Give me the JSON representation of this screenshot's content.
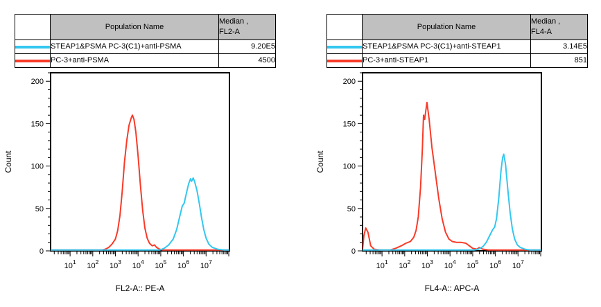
{
  "colors": {
    "red": "#F93A28",
    "cyan": "#33C7F0",
    "header_bg": "#C0C0C0",
    "axis": "#000000"
  },
  "panels": [
    {
      "table": {
        "population_header": "Population Name",
        "median_header_line1": "Median ,",
        "median_header_line2": "FL2-A",
        "rows": [
          {
            "color_key": "cyan",
            "population": "STEAP1&PSMA PC-3(C1)+anti-PSMA",
            "median": "9.20E5"
          },
          {
            "color_key": "red",
            "population": "PC-3+anti-PSMA",
            "median": "4500"
          }
        ]
      }
    },
    {
      "table": {
        "population_header": "Population Name",
        "median_header_line1": "Median ,",
        "median_header_line2": "FL4-A",
        "rows": [
          {
            "color_key": "cyan",
            "population": "STEAP1&PSMA PC-3(C1)+anti-STEAP1",
            "median": "3.14E5"
          },
          {
            "color_key": "red",
            "population": "PC-3+anti-STEAP1",
            "median": "851"
          }
        ]
      }
    }
  ],
  "chart_data": [
    {
      "type": "line",
      "title": "",
      "xlabel": "FL2-A:: PE-A",
      "ylabel": "Count",
      "x_scale": "log10",
      "x_range_decades": [
        0.14,
        8.03
      ],
      "x_major_tick_decades_labeled": [
        1,
        2,
        3,
        4,
        5,
        6,
        7
      ],
      "x_tick_label_format": "10^n",
      "ylim": [
        0,
        210
      ],
      "y_major_ticks": [
        0,
        50,
        100,
        150,
        200
      ],
      "y_minor_step": 10,
      "grid": false,
      "legend": "table above chart",
      "series": [
        {
          "name": "PC-3+anti-PSMA",
          "color_key": "red",
          "median_label": "4500",
          "points": [
            [
              0.14,
              1
            ],
            [
              2.4,
              1
            ],
            [
              2.55,
              2
            ],
            [
              2.7,
              4
            ],
            [
              2.85,
              8
            ],
            [
              3.0,
              14
            ],
            [
              3.1,
              24
            ],
            [
              3.2,
              42
            ],
            [
              3.3,
              70
            ],
            [
              3.4,
              105
            ],
            [
              3.5,
              130
            ],
            [
              3.6,
              148
            ],
            [
              3.7,
              157
            ],
            [
              3.75,
              160
            ],
            [
              3.82,
              155
            ],
            [
              3.9,
              140
            ],
            [
              4.0,
              112
            ],
            [
              4.1,
              78
            ],
            [
              4.2,
              48
            ],
            [
              4.3,
              27
            ],
            [
              4.4,
              15
            ],
            [
              4.5,
              9
            ],
            [
              4.62,
              6
            ],
            [
              4.72,
              7
            ],
            [
              4.82,
              4
            ],
            [
              4.95,
              2
            ],
            [
              5.1,
              1
            ],
            [
              8.03,
              1
            ]
          ]
        },
        {
          "name": "STEAP1&PSMA PC-3(C1)+anti-PSMA",
          "color_key": "cyan",
          "median_label": "9.20E5",
          "points": [
            [
              0.14,
              1
            ],
            [
              4.95,
              1
            ],
            [
              5.15,
              3
            ],
            [
              5.35,
              7
            ],
            [
              5.55,
              14
            ],
            [
              5.7,
              25
            ],
            [
              5.85,
              42
            ],
            [
              5.95,
              53
            ],
            [
              6.03,
              56
            ],
            [
              6.13,
              68
            ],
            [
              6.23,
              79
            ],
            [
              6.31,
              85
            ],
            [
              6.36,
              82
            ],
            [
              6.43,
              86
            ],
            [
              6.5,
              81
            ],
            [
              6.6,
              71
            ],
            [
              6.7,
              56
            ],
            [
              6.8,
              39
            ],
            [
              6.9,
              25
            ],
            [
              7.0,
              15
            ],
            [
              7.12,
              8
            ],
            [
              7.28,
              4
            ],
            [
              7.5,
              2
            ],
            [
              7.8,
              1
            ],
            [
              8.03,
              1
            ]
          ]
        }
      ]
    },
    {
      "type": "line",
      "title": "",
      "xlabel": "FL4-A:: APC-A",
      "ylabel": "Count",
      "x_scale": "log10",
      "x_range_decades": [
        0.14,
        8.03
      ],
      "x_major_tick_decades_labeled": [
        1,
        2,
        3,
        4,
        5,
        6,
        7
      ],
      "x_tick_label_format": "10^n",
      "ylim": [
        0,
        210
      ],
      "y_major_ticks": [
        0,
        50,
        100,
        150,
        200
      ],
      "y_minor_step": 10,
      "grid": false,
      "legend": "table above chart",
      "series": [
        {
          "name": "PC-3+anti-STEAP1",
          "color_key": "red",
          "median_label": "851",
          "points": [
            [
              0.14,
              2
            ],
            [
              0.2,
              18
            ],
            [
              0.28,
              27
            ],
            [
              0.38,
              22
            ],
            [
              0.5,
              6
            ],
            [
              0.65,
              2
            ],
            [
              0.9,
              1
            ],
            [
              1.35,
              1
            ],
            [
              1.6,
              3
            ],
            [
              1.85,
              6
            ],
            [
              2.05,
              9
            ],
            [
              2.25,
              11
            ],
            [
              2.4,
              16
            ],
            [
              2.5,
              24
            ],
            [
              2.6,
              40
            ],
            [
              2.7,
              75
            ],
            [
              2.78,
              120
            ],
            [
              2.83,
              160
            ],
            [
              2.88,
              155
            ],
            [
              2.98,
              175
            ],
            [
              3.08,
              155
            ],
            [
              3.2,
              122
            ],
            [
              3.35,
              92
            ],
            [
              3.5,
              62
            ],
            [
              3.65,
              38
            ],
            [
              3.8,
              22
            ],
            [
              3.95,
              14
            ],
            [
              4.1,
              11
            ],
            [
              4.3,
              10
            ],
            [
              4.5,
              10
            ],
            [
              4.7,
              9
            ],
            [
              4.85,
              6
            ],
            [
              5.0,
              3
            ],
            [
              5.18,
              2
            ],
            [
              5.3,
              4
            ],
            [
              5.45,
              2
            ],
            [
              5.7,
              1
            ],
            [
              8.03,
              1
            ]
          ]
        },
        {
          "name": "STEAP1&PSMA PC-3(C1)+anti-STEAP1",
          "color_key": "cyan",
          "median_label": "3.14E5",
          "points": [
            [
              0.14,
              1
            ],
            [
              5.05,
              1
            ],
            [
              5.25,
              2
            ],
            [
              5.45,
              5
            ],
            [
              5.6,
              10
            ],
            [
              5.75,
              18
            ],
            [
              5.88,
              25
            ],
            [
              5.97,
              28
            ],
            [
              6.05,
              38
            ],
            [
              6.15,
              62
            ],
            [
              6.25,
              95
            ],
            [
              6.32,
              110
            ],
            [
              6.37,
              114
            ],
            [
              6.45,
              102
            ],
            [
              6.55,
              72
            ],
            [
              6.65,
              45
            ],
            [
              6.75,
              26
            ],
            [
              6.85,
              14
            ],
            [
              6.97,
              7
            ],
            [
              7.1,
              4
            ],
            [
              7.3,
              2
            ],
            [
              7.55,
              1
            ],
            [
              8.03,
              1
            ]
          ]
        }
      ]
    }
  ]
}
